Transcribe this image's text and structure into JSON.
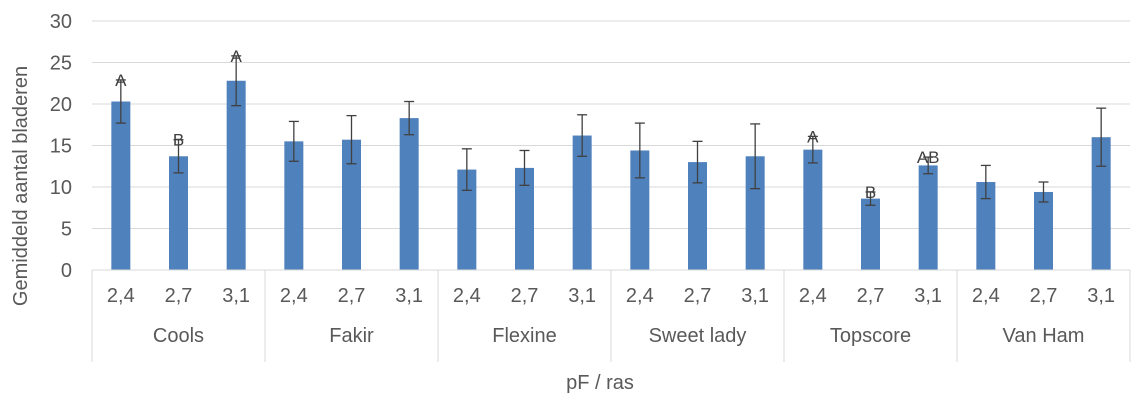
{
  "chart_data": {
    "type": "bar",
    "xlabel": "pF / ras",
    "ylabel": "Gemiddeld aantal bladeren",
    "ylim": [
      0,
      30
    ],
    "yticks": [
      0,
      5,
      10,
      15,
      20,
      25,
      30
    ],
    "grid": true,
    "legend": "none",
    "bar_color": "#4f81bd",
    "groups": [
      {
        "label": "Cools",
        "categories": [
          "2,4",
          "2,7",
          "3,1"
        ],
        "values": [
          20.3,
          13.7,
          22.8
        ],
        "errors": [
          2.6,
          2.0,
          3.0
        ],
        "letters": [
          "A",
          "B",
          "A"
        ]
      },
      {
        "label": "Fakir",
        "categories": [
          "2,4",
          "2,7",
          "3,1"
        ],
        "values": [
          15.5,
          15.7,
          18.3
        ],
        "errors": [
          2.4,
          2.9,
          2.0
        ],
        "letters": [
          "",
          "",
          ""
        ]
      },
      {
        "label": "Flexine",
        "categories": [
          "2,4",
          "2,7",
          "3,1"
        ],
        "values": [
          12.1,
          12.3,
          16.2
        ],
        "errors": [
          2.5,
          2.1,
          2.5
        ],
        "letters": [
          "",
          "",
          ""
        ]
      },
      {
        "label": "Sweet lady",
        "categories": [
          "2,4",
          "2,7",
          "3,1"
        ],
        "values": [
          14.4,
          13.0,
          13.7
        ],
        "errors": [
          3.3,
          2.5,
          3.9
        ],
        "letters": [
          "",
          "",
          ""
        ]
      },
      {
        "label": "Topscore",
        "categories": [
          "2,4",
          "2,7",
          "3,1"
        ],
        "values": [
          14.5,
          8.6,
          12.6
        ],
        "errors": [
          1.6,
          0.8,
          1.0
        ],
        "letters": [
          "A",
          "B",
          "AB"
        ]
      },
      {
        "label": "Van Ham",
        "categories": [
          "2,4",
          "2,7",
          "3,1"
        ],
        "values": [
          10.6,
          9.4,
          16.0
        ],
        "errors": [
          2.0,
          1.2,
          3.5
        ],
        "letters": [
          "",
          "",
          ""
        ]
      }
    ]
  }
}
